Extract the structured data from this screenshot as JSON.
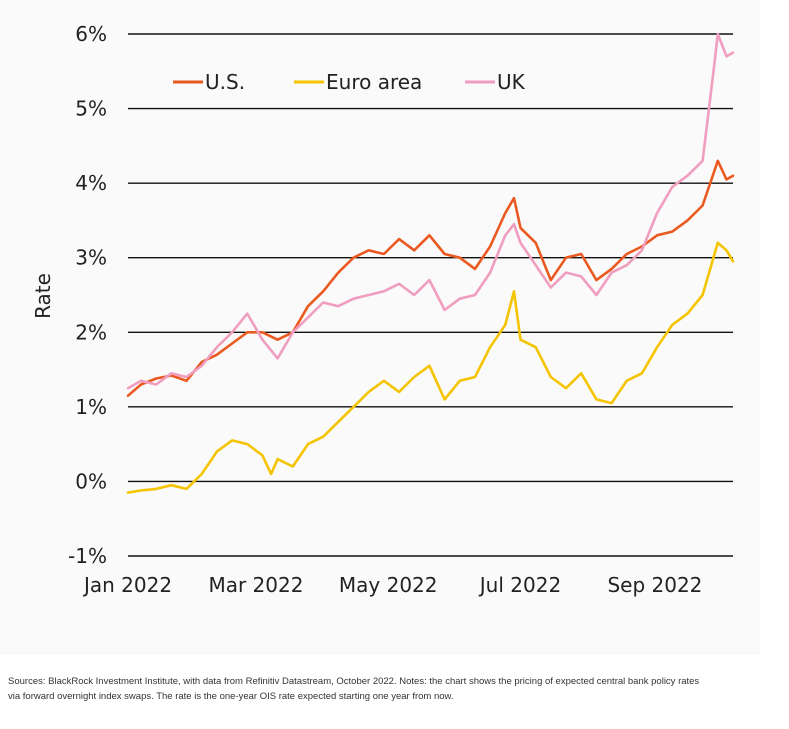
{
  "chart_data": {
    "type": "line",
    "ylabel": "Rate",
    "xlabel": "",
    "ylim": [
      -1,
      6
    ],
    "y_ticks": [
      {
        "value": 6,
        "label": "6%"
      },
      {
        "value": 5,
        "label": "5%"
      },
      {
        "value": 4,
        "label": "4%"
      },
      {
        "value": 3,
        "label": "3%"
      },
      {
        "value": 2,
        "label": "2%"
      },
      {
        "value": 1,
        "label": "1%"
      },
      {
        "value": 0,
        "label": "0%"
      },
      {
        "value": -1,
        "label": "-1%"
      }
    ],
    "x_ticks": [
      {
        "value": "2022-01-01",
        "label": "Jan 2022"
      },
      {
        "value": "2022-03-01",
        "label": "Mar 2022"
      },
      {
        "value": "2022-05-01",
        "label": "May 2022"
      },
      {
        "value": "2022-07-01",
        "label": "Jul 2022"
      },
      {
        "value": "2022-09-01",
        "label": "Sep 2022"
      }
    ],
    "xlim": [
      "2022-01-01",
      "2022-10-07"
    ],
    "grid": "horizontal",
    "legend_position": "top-left",
    "series": [
      {
        "name": "U.S.",
        "color": "#ea5a20",
        "points": [
          [
            "2022-01-01",
            1.15
          ],
          [
            "2022-01-07",
            1.3
          ],
          [
            "2022-01-14",
            1.38
          ],
          [
            "2022-01-21",
            1.42
          ],
          [
            "2022-01-28",
            1.35
          ],
          [
            "2022-02-04",
            1.6
          ],
          [
            "2022-02-11",
            1.7
          ],
          [
            "2022-02-18",
            1.85
          ],
          [
            "2022-02-25",
            2.0
          ],
          [
            "2022-03-04",
            2.0
          ],
          [
            "2022-03-11",
            1.9
          ],
          [
            "2022-03-18",
            2.0
          ],
          [
            "2022-03-25",
            2.35
          ],
          [
            "2022-04-01",
            2.55
          ],
          [
            "2022-04-08",
            2.8
          ],
          [
            "2022-04-15",
            3.0
          ],
          [
            "2022-04-22",
            3.1
          ],
          [
            "2022-04-29",
            3.05
          ],
          [
            "2022-05-06",
            3.25
          ],
          [
            "2022-05-13",
            3.1
          ],
          [
            "2022-05-20",
            3.3
          ],
          [
            "2022-05-27",
            3.05
          ],
          [
            "2022-06-03",
            3.0
          ],
          [
            "2022-06-10",
            2.85
          ],
          [
            "2022-06-17",
            3.15
          ],
          [
            "2022-06-24",
            3.6
          ],
          [
            "2022-06-28",
            3.8
          ],
          [
            "2022-07-01",
            3.4
          ],
          [
            "2022-07-08",
            3.2
          ],
          [
            "2022-07-15",
            2.7
          ],
          [
            "2022-07-22",
            3.0
          ],
          [
            "2022-07-29",
            3.05
          ],
          [
            "2022-08-05",
            2.7
          ],
          [
            "2022-08-12",
            2.85
          ],
          [
            "2022-08-19",
            3.05
          ],
          [
            "2022-08-26",
            3.15
          ],
          [
            "2022-09-02",
            3.3
          ],
          [
            "2022-09-09",
            3.35
          ],
          [
            "2022-09-16",
            3.5
          ],
          [
            "2022-09-23",
            3.7
          ],
          [
            "2022-09-30",
            4.3
          ],
          [
            "2022-10-04",
            4.05
          ],
          [
            "2022-10-07",
            4.1
          ]
        ]
      },
      {
        "name": "Euro area",
        "color": "#f5c400",
        "points": [
          [
            "2022-01-01",
            -0.15
          ],
          [
            "2022-01-07",
            -0.12
          ],
          [
            "2022-01-14",
            -0.1
          ],
          [
            "2022-01-21",
            -0.05
          ],
          [
            "2022-01-28",
            -0.1
          ],
          [
            "2022-02-04",
            0.1
          ],
          [
            "2022-02-11",
            0.4
          ],
          [
            "2022-02-18",
            0.55
          ],
          [
            "2022-02-25",
            0.5
          ],
          [
            "2022-03-04",
            0.35
          ],
          [
            "2022-03-08",
            0.1
          ],
          [
            "2022-03-11",
            0.3
          ],
          [
            "2022-03-18",
            0.2
          ],
          [
            "2022-03-25",
            0.5
          ],
          [
            "2022-04-01",
            0.6
          ],
          [
            "2022-04-08",
            0.8
          ],
          [
            "2022-04-15",
            1.0
          ],
          [
            "2022-04-22",
            1.2
          ],
          [
            "2022-04-29",
            1.35
          ],
          [
            "2022-05-06",
            1.2
          ],
          [
            "2022-05-13",
            1.4
          ],
          [
            "2022-05-20",
            1.55
          ],
          [
            "2022-05-27",
            1.1
          ],
          [
            "2022-06-03",
            1.35
          ],
          [
            "2022-06-10",
            1.4
          ],
          [
            "2022-06-17",
            1.8
          ],
          [
            "2022-06-24",
            2.1
          ],
          [
            "2022-06-28",
            2.55
          ],
          [
            "2022-07-01",
            1.9
          ],
          [
            "2022-07-08",
            1.8
          ],
          [
            "2022-07-15",
            1.4
          ],
          [
            "2022-07-22",
            1.25
          ],
          [
            "2022-07-29",
            1.45
          ],
          [
            "2022-08-05",
            1.1
          ],
          [
            "2022-08-12",
            1.05
          ],
          [
            "2022-08-19",
            1.35
          ],
          [
            "2022-08-26",
            1.45
          ],
          [
            "2022-09-02",
            1.8
          ],
          [
            "2022-09-09",
            2.1
          ],
          [
            "2022-09-16",
            2.25
          ],
          [
            "2022-09-23",
            2.5
          ],
          [
            "2022-09-30",
            3.2
          ],
          [
            "2022-10-04",
            3.1
          ],
          [
            "2022-10-07",
            2.95
          ]
        ]
      },
      {
        "name": "UK",
        "color": "#f09ec0",
        "points": [
          [
            "2022-01-01",
            1.25
          ],
          [
            "2022-01-07",
            1.35
          ],
          [
            "2022-01-14",
            1.3
          ],
          [
            "2022-01-21",
            1.45
          ],
          [
            "2022-01-28",
            1.4
          ],
          [
            "2022-02-04",
            1.55
          ],
          [
            "2022-02-11",
            1.8
          ],
          [
            "2022-02-18",
            2.0
          ],
          [
            "2022-02-25",
            2.25
          ],
          [
            "2022-03-04",
            1.9
          ],
          [
            "2022-03-11",
            1.65
          ],
          [
            "2022-03-18",
            2.0
          ],
          [
            "2022-03-25",
            2.2
          ],
          [
            "2022-04-01",
            2.4
          ],
          [
            "2022-04-08",
            2.35
          ],
          [
            "2022-04-15",
            2.45
          ],
          [
            "2022-04-22",
            2.5
          ],
          [
            "2022-04-29",
            2.55
          ],
          [
            "2022-05-06",
            2.65
          ],
          [
            "2022-05-13",
            2.5
          ],
          [
            "2022-05-20",
            2.7
          ],
          [
            "2022-05-27",
            2.3
          ],
          [
            "2022-06-03",
            2.45
          ],
          [
            "2022-06-10",
            2.5
          ],
          [
            "2022-06-17",
            2.8
          ],
          [
            "2022-06-24",
            3.3
          ],
          [
            "2022-06-28",
            3.45
          ],
          [
            "2022-07-01",
            3.2
          ],
          [
            "2022-07-08",
            2.9
          ],
          [
            "2022-07-15",
            2.6
          ],
          [
            "2022-07-22",
            2.8
          ],
          [
            "2022-07-29",
            2.75
          ],
          [
            "2022-08-05",
            2.5
          ],
          [
            "2022-08-12",
            2.8
          ],
          [
            "2022-08-19",
            2.9
          ],
          [
            "2022-08-26",
            3.1
          ],
          [
            "2022-09-02",
            3.6
          ],
          [
            "2022-09-09",
            3.95
          ],
          [
            "2022-09-16",
            4.1
          ],
          [
            "2022-09-23",
            4.3
          ],
          [
            "2022-09-28",
            5.5
          ],
          [
            "2022-09-30",
            6.0
          ],
          [
            "2022-10-04",
            5.7
          ],
          [
            "2022-10-07",
            5.75
          ]
        ]
      }
    ]
  },
  "footnote": "Sources: BlackRock Investment Institute, with data from Refinitiv Datastream, October 2022. Notes: the chart shows the pricing of expected central bank policy rates via forward overnight index swaps. The rate is the one-year OIS rate expected starting one year from now."
}
